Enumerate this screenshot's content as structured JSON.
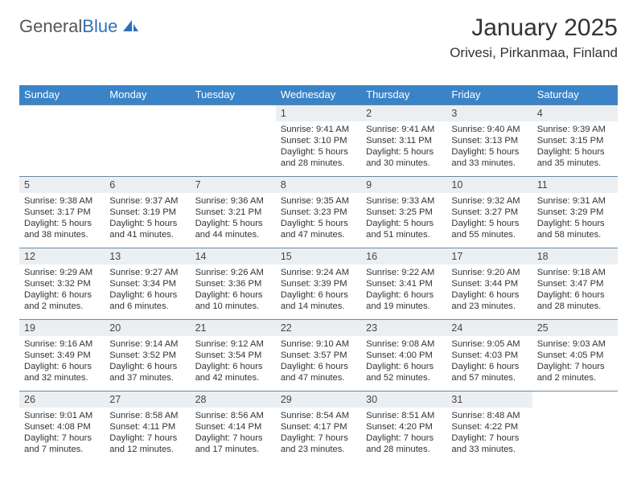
{
  "logo": {
    "text1": "General",
    "text2": "Blue"
  },
  "header": {
    "month": "January 2025",
    "location": "Orivesi, Pirkanmaa, Finland"
  },
  "colors": {
    "header_bg": "#3b83c7",
    "daynum_bg": "#eceff2",
    "week_border": "#6a87a2",
    "logo_blue": "#2f71b8"
  },
  "weekdays": [
    "Sunday",
    "Monday",
    "Tuesday",
    "Wednesday",
    "Thursday",
    "Friday",
    "Saturday"
  ],
  "weeks": [
    [
      {
        "empty": true
      },
      {
        "empty": true
      },
      {
        "empty": true
      },
      {
        "n": "1",
        "sr": "Sunrise: 9:41 AM",
        "ss": "Sunset: 3:10 PM",
        "d1": "Daylight: 5 hours",
        "d2": "and 28 minutes."
      },
      {
        "n": "2",
        "sr": "Sunrise: 9:41 AM",
        "ss": "Sunset: 3:11 PM",
        "d1": "Daylight: 5 hours",
        "d2": "and 30 minutes."
      },
      {
        "n": "3",
        "sr": "Sunrise: 9:40 AM",
        "ss": "Sunset: 3:13 PM",
        "d1": "Daylight: 5 hours",
        "d2": "and 33 minutes."
      },
      {
        "n": "4",
        "sr": "Sunrise: 9:39 AM",
        "ss": "Sunset: 3:15 PM",
        "d1": "Daylight: 5 hours",
        "d2": "and 35 minutes."
      }
    ],
    [
      {
        "n": "5",
        "sr": "Sunrise: 9:38 AM",
        "ss": "Sunset: 3:17 PM",
        "d1": "Daylight: 5 hours",
        "d2": "and 38 minutes."
      },
      {
        "n": "6",
        "sr": "Sunrise: 9:37 AM",
        "ss": "Sunset: 3:19 PM",
        "d1": "Daylight: 5 hours",
        "d2": "and 41 minutes."
      },
      {
        "n": "7",
        "sr": "Sunrise: 9:36 AM",
        "ss": "Sunset: 3:21 PM",
        "d1": "Daylight: 5 hours",
        "d2": "and 44 minutes."
      },
      {
        "n": "8",
        "sr": "Sunrise: 9:35 AM",
        "ss": "Sunset: 3:23 PM",
        "d1": "Daylight: 5 hours",
        "d2": "and 47 minutes."
      },
      {
        "n": "9",
        "sr": "Sunrise: 9:33 AM",
        "ss": "Sunset: 3:25 PM",
        "d1": "Daylight: 5 hours",
        "d2": "and 51 minutes."
      },
      {
        "n": "10",
        "sr": "Sunrise: 9:32 AM",
        "ss": "Sunset: 3:27 PM",
        "d1": "Daylight: 5 hours",
        "d2": "and 55 minutes."
      },
      {
        "n": "11",
        "sr": "Sunrise: 9:31 AM",
        "ss": "Sunset: 3:29 PM",
        "d1": "Daylight: 5 hours",
        "d2": "and 58 minutes."
      }
    ],
    [
      {
        "n": "12",
        "sr": "Sunrise: 9:29 AM",
        "ss": "Sunset: 3:32 PM",
        "d1": "Daylight: 6 hours",
        "d2": "and 2 minutes."
      },
      {
        "n": "13",
        "sr": "Sunrise: 9:27 AM",
        "ss": "Sunset: 3:34 PM",
        "d1": "Daylight: 6 hours",
        "d2": "and 6 minutes."
      },
      {
        "n": "14",
        "sr": "Sunrise: 9:26 AM",
        "ss": "Sunset: 3:36 PM",
        "d1": "Daylight: 6 hours",
        "d2": "and 10 minutes."
      },
      {
        "n": "15",
        "sr": "Sunrise: 9:24 AM",
        "ss": "Sunset: 3:39 PM",
        "d1": "Daylight: 6 hours",
        "d2": "and 14 minutes."
      },
      {
        "n": "16",
        "sr": "Sunrise: 9:22 AM",
        "ss": "Sunset: 3:41 PM",
        "d1": "Daylight: 6 hours",
        "d2": "and 19 minutes."
      },
      {
        "n": "17",
        "sr": "Sunrise: 9:20 AM",
        "ss": "Sunset: 3:44 PM",
        "d1": "Daylight: 6 hours",
        "d2": "and 23 minutes."
      },
      {
        "n": "18",
        "sr": "Sunrise: 9:18 AM",
        "ss": "Sunset: 3:47 PM",
        "d1": "Daylight: 6 hours",
        "d2": "and 28 minutes."
      }
    ],
    [
      {
        "n": "19",
        "sr": "Sunrise: 9:16 AM",
        "ss": "Sunset: 3:49 PM",
        "d1": "Daylight: 6 hours",
        "d2": "and 32 minutes."
      },
      {
        "n": "20",
        "sr": "Sunrise: 9:14 AM",
        "ss": "Sunset: 3:52 PM",
        "d1": "Daylight: 6 hours",
        "d2": "and 37 minutes."
      },
      {
        "n": "21",
        "sr": "Sunrise: 9:12 AM",
        "ss": "Sunset: 3:54 PM",
        "d1": "Daylight: 6 hours",
        "d2": "and 42 minutes."
      },
      {
        "n": "22",
        "sr": "Sunrise: 9:10 AM",
        "ss": "Sunset: 3:57 PM",
        "d1": "Daylight: 6 hours",
        "d2": "and 47 minutes."
      },
      {
        "n": "23",
        "sr": "Sunrise: 9:08 AM",
        "ss": "Sunset: 4:00 PM",
        "d1": "Daylight: 6 hours",
        "d2": "and 52 minutes."
      },
      {
        "n": "24",
        "sr": "Sunrise: 9:05 AM",
        "ss": "Sunset: 4:03 PM",
        "d1": "Daylight: 6 hours",
        "d2": "and 57 minutes."
      },
      {
        "n": "25",
        "sr": "Sunrise: 9:03 AM",
        "ss": "Sunset: 4:05 PM",
        "d1": "Daylight: 7 hours",
        "d2": "and 2 minutes."
      }
    ],
    [
      {
        "n": "26",
        "sr": "Sunrise: 9:01 AM",
        "ss": "Sunset: 4:08 PM",
        "d1": "Daylight: 7 hours",
        "d2": "and 7 minutes."
      },
      {
        "n": "27",
        "sr": "Sunrise: 8:58 AM",
        "ss": "Sunset: 4:11 PM",
        "d1": "Daylight: 7 hours",
        "d2": "and 12 minutes."
      },
      {
        "n": "28",
        "sr": "Sunrise: 8:56 AM",
        "ss": "Sunset: 4:14 PM",
        "d1": "Daylight: 7 hours",
        "d2": "and 17 minutes."
      },
      {
        "n": "29",
        "sr": "Sunrise: 8:54 AM",
        "ss": "Sunset: 4:17 PM",
        "d1": "Daylight: 7 hours",
        "d2": "and 23 minutes."
      },
      {
        "n": "30",
        "sr": "Sunrise: 8:51 AM",
        "ss": "Sunset: 4:20 PM",
        "d1": "Daylight: 7 hours",
        "d2": "and 28 minutes."
      },
      {
        "n": "31",
        "sr": "Sunrise: 8:48 AM",
        "ss": "Sunset: 4:22 PM",
        "d1": "Daylight: 7 hours",
        "d2": "and 33 minutes."
      },
      {
        "empty": true
      }
    ]
  ]
}
